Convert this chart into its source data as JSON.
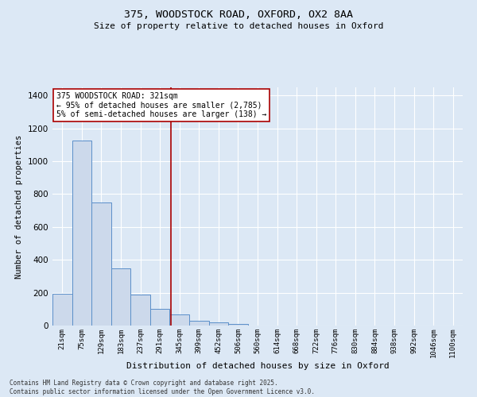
{
  "title_line1": "375, WOODSTOCK ROAD, OXFORD, OX2 8AA",
  "title_line2": "Size of property relative to detached houses in Oxford",
  "xlabel": "Distribution of detached houses by size in Oxford",
  "ylabel": "Number of detached properties",
  "categories": [
    "21sqm",
    "75sqm",
    "129sqm",
    "183sqm",
    "237sqm",
    "291sqm",
    "345sqm",
    "399sqm",
    "452sqm",
    "506sqm",
    "560sqm",
    "614sqm",
    "668sqm",
    "722sqm",
    "776sqm",
    "830sqm",
    "884sqm",
    "938sqm",
    "992sqm",
    "1046sqm",
    "1100sqm"
  ],
  "values": [
    195,
    1125,
    750,
    350,
    190,
    100,
    70,
    30,
    20,
    10,
    0,
    0,
    0,
    0,
    0,
    0,
    0,
    0,
    0,
    0,
    0
  ],
  "bar_color": "#ccd9eb",
  "bar_edge_color": "#5b8fc9",
  "vline_x_index": 5.5,
  "vline_color": "#aa0000",
  "annotation_text": "375 WOODSTOCK ROAD: 321sqm\n← 95% of detached houses are smaller (2,785)\n5% of semi-detached houses are larger (138) →",
  "annotation_box_color": "#ffffff",
  "annotation_box_edge": "#aa0000",
  "ylim": [
    0,
    1450
  ],
  "yticks": [
    0,
    200,
    400,
    600,
    800,
    1000,
    1200,
    1400
  ],
  "background_color": "#dce8f5",
  "grid_color": "#ffffff",
  "footer_line1": "Contains HM Land Registry data © Crown copyright and database right 2025.",
  "footer_line2": "Contains public sector information licensed under the Open Government Licence v3.0."
}
